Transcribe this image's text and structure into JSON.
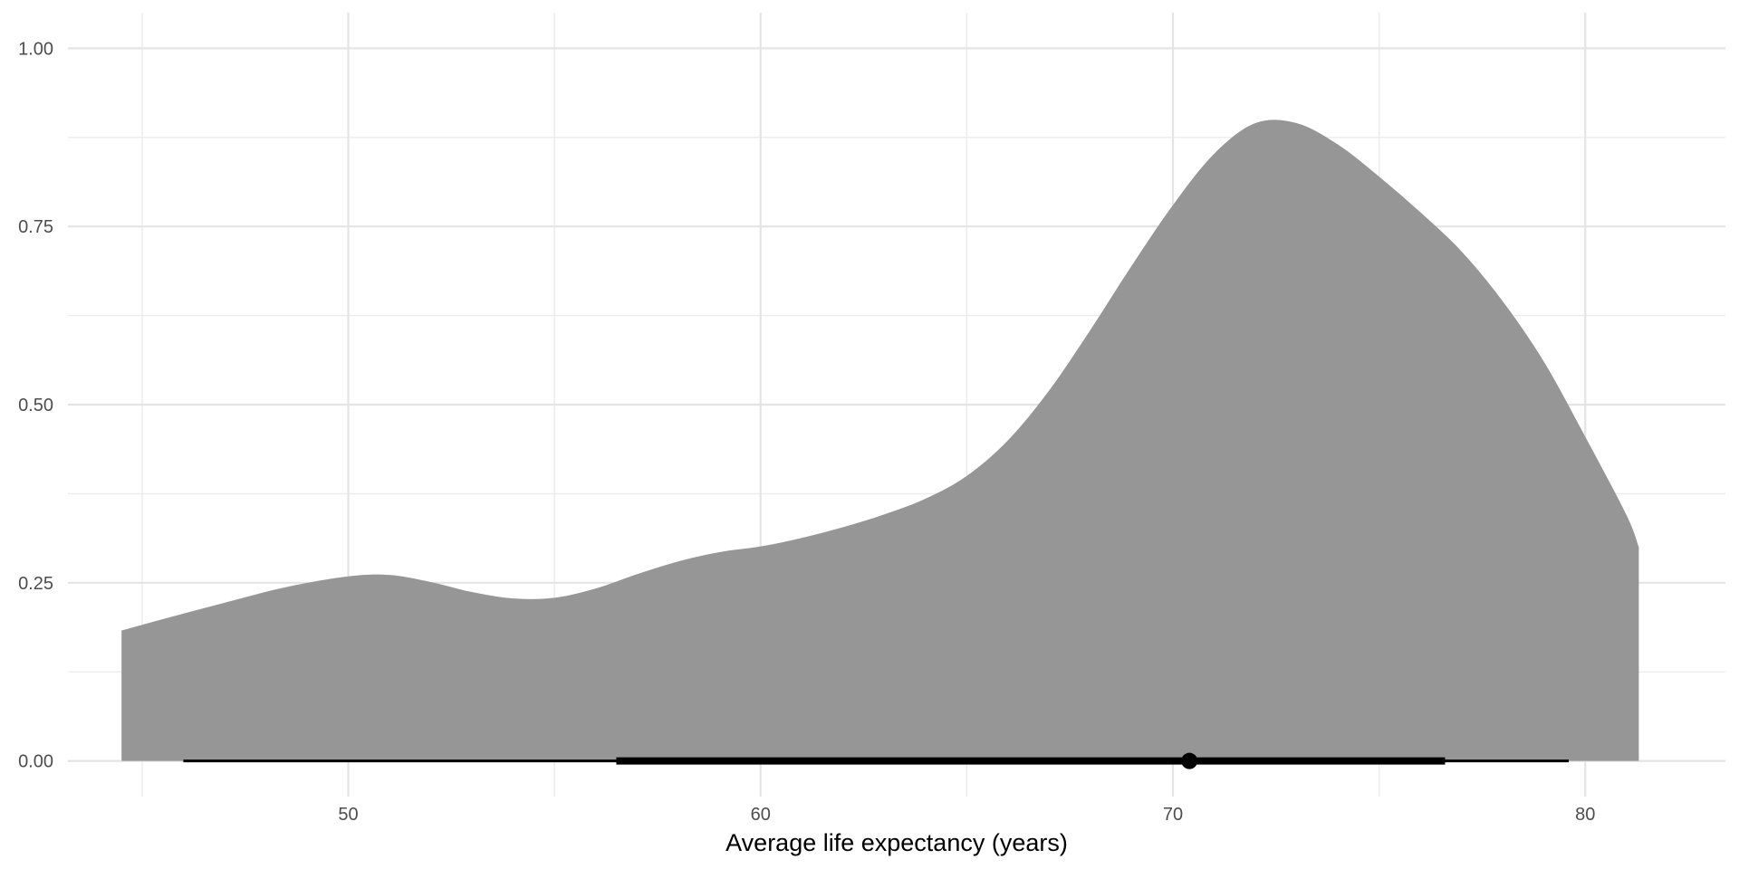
{
  "chart_data": {
    "type": "area",
    "title": "",
    "xlabel": "Average life expectancy (years)",
    "ylabel": "",
    "xlim": [
      43.2,
      83.4
    ],
    "ylim": [
      -0.05,
      1.05
    ],
    "x_ticks": [
      50,
      60,
      70,
      80
    ],
    "x_tick_labels": [
      "50",
      "60",
      "70",
      "80"
    ],
    "x_minor_ticks": [
      45,
      55,
      65,
      75
    ],
    "y_ticks": [
      0,
      0.25,
      0.5,
      0.75,
      1.0
    ],
    "y_tick_labels": [
      "0.00",
      "0.25",
      "0.50",
      "0.75",
      "1.00"
    ],
    "y_minor_ticks": [
      0.125,
      0.375,
      0.625,
      0.875
    ],
    "grid": true,
    "legend": "none",
    "density_color": "#969696",
    "interval_color": "#000000",
    "density": {
      "x": [
        44.5,
        45.5,
        47,
        48.5,
        50,
        51,
        52,
        53,
        54,
        55,
        56,
        57,
        58,
        59,
        60,
        61,
        62,
        63,
        64,
        65,
        66,
        67,
        68,
        69,
        70,
        71,
        72,
        73,
        74,
        75,
        76,
        77,
        78,
        79,
        80,
        81,
        81.3
      ],
      "y": [
        0.183,
        0.199,
        0.222,
        0.244,
        0.259,
        0.261,
        0.251,
        0.237,
        0.228,
        0.229,
        0.242,
        0.262,
        0.28,
        0.293,
        0.301,
        0.313,
        0.328,
        0.346,
        0.368,
        0.4,
        0.45,
        0.52,
        0.605,
        0.695,
        0.78,
        0.852,
        0.895,
        0.895,
        0.865,
        0.82,
        0.77,
        0.715,
        0.645,
        0.56,
        0.455,
        0.345,
        0.3
      ]
    },
    "point_estimate": 70.4,
    "intervals": [
      {
        "level": "outer",
        "lower": 46.0,
        "upper": 79.6
      },
      {
        "level": "inner",
        "lower": 56.5,
        "upper": 76.6
      }
    ]
  }
}
